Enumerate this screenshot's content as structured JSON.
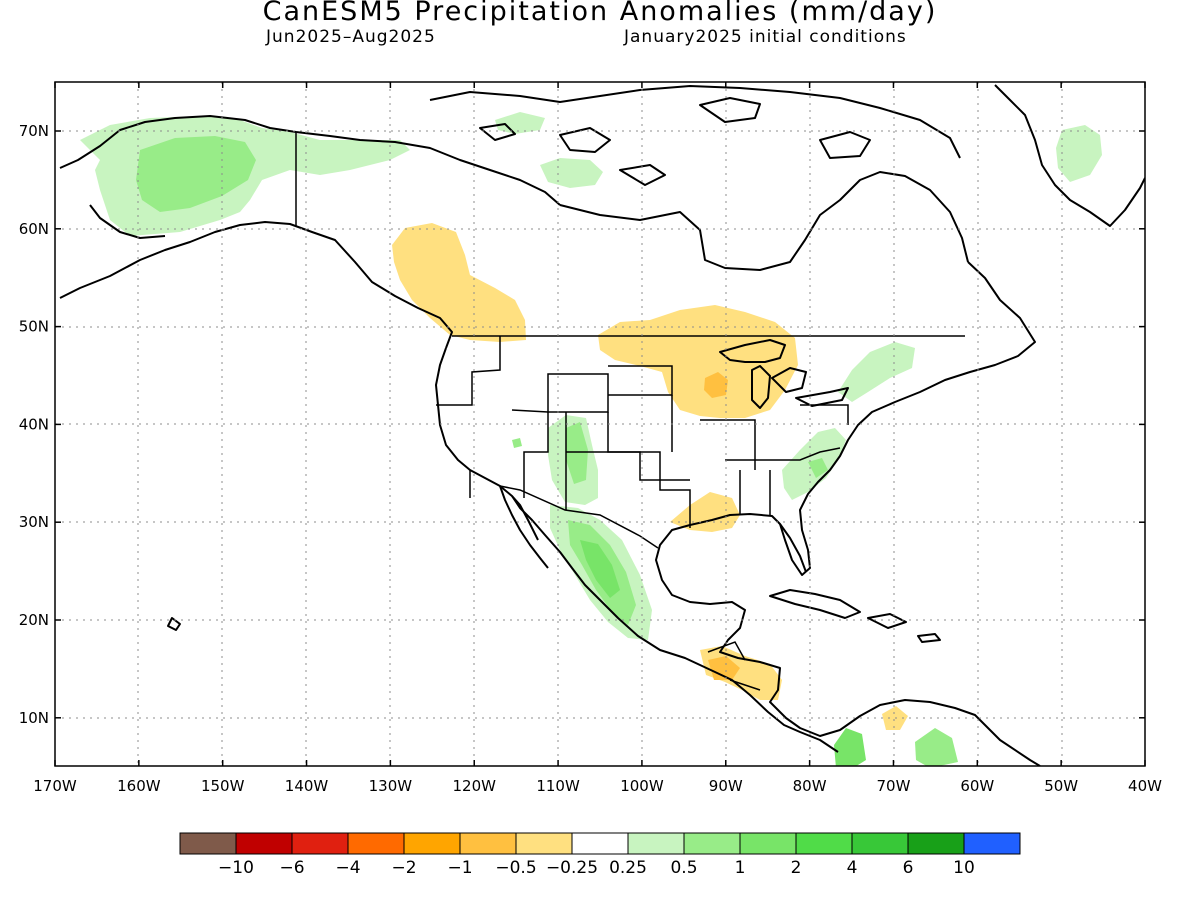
{
  "title": "CanESM5 Precipitation Anomalies (mm/day)",
  "period": "Jun2025–Aug2025",
  "init": "January2025 initial conditions",
  "map": {
    "lon_ticks": [
      "170W",
      "160W",
      "150W",
      "140W",
      "130W",
      "120W",
      "110W",
      "100W",
      "90W",
      "80W",
      "70W",
      "60W",
      "50W",
      "40W"
    ],
    "lat_ticks": [
      "70N",
      "60N",
      "50N",
      "40N",
      "30N",
      "20N",
      "10N"
    ],
    "grid": "dotted"
  },
  "colorbar": {
    "colors": [
      "#7f5a4a",
      "#c00000",
      "#e02010",
      "#ff6a00",
      "#ffa500",
      "#ffc040",
      "#ffe080",
      "#ffffff",
      "#c8f4c0",
      "#98ec88",
      "#78e468",
      "#50dc48",
      "#38c838",
      "#18a018",
      "#2060ff"
    ],
    "labels": [
      "−10",
      "−6",
      "−4",
      "−2",
      "−1",
      "−0.5",
      "−0.25",
      "0.25",
      "0.5",
      "1",
      "2",
      "4",
      "6",
      "10"
    ]
  }
}
